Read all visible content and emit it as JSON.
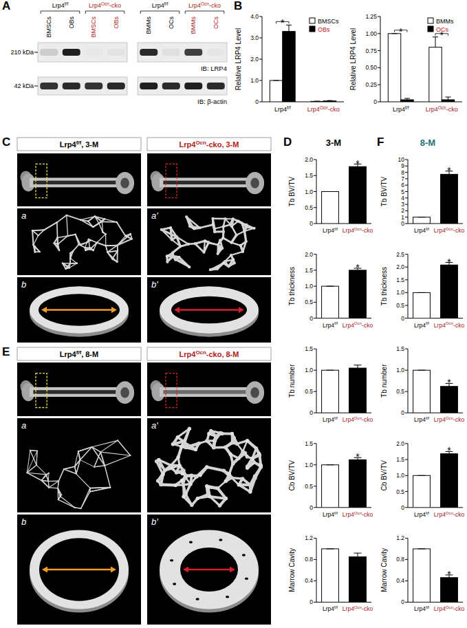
{
  "panels": {
    "A": {
      "label": "A",
      "groups": [
        {
          "name": "Lrp4f/f",
          "lanes": [
            "BMSCs",
            "OBs"
          ]
        },
        {
          "name": "Lrp4Ocn-cko",
          "lanes": [
            "BMSCs",
            "OBs"
          ]
        },
        {
          "name": "Lrp4f/f",
          "lanes": [
            "BMMs",
            "OCs"
          ]
        },
        {
          "name": "Lrp4Ocn-cko",
          "lanes": [
            "BMMs",
            "OCs"
          ]
        }
      ],
      "blots": [
        {
          "size": "210 kDa",
          "antibody": "IB: LRP4",
          "intensity": [
            0.15,
            0.95,
            0.02,
            0.04,
            0.9,
            0.06,
            0.8,
            0.03
          ]
        },
        {
          "size": "42 kDa",
          "antibody": "IB: β-actin",
          "intensity": [
            0.85,
            0.9,
            0.85,
            0.9,
            0.95,
            0.9,
            0.95,
            0.9
          ]
        }
      ]
    },
    "B": {
      "label": "B"
    },
    "C": {
      "label": "C",
      "headers": [
        "Lrp4f/f, 3-M",
        "Lrp4Ocn-cko, 3-M"
      ],
      "sub_labels": [
        [
          "a",
          "a′"
        ],
        [
          "b",
          "b′"
        ]
      ]
    },
    "D": {
      "label": "D",
      "title": "3-M"
    },
    "E": {
      "label": "E",
      "headers": [
        "Lrp4f/f, 8-M",
        "Lrp4Ocn-cko, 8-M"
      ],
      "sub_labels": [
        [
          "a",
          "a′"
        ],
        [
          "b",
          "b′"
        ]
      ]
    },
    "F": {
      "label": "F",
      "title": "8-M"
    }
  },
  "chart_data": [
    {
      "type": "bar",
      "ylabel": "Relative LRP4 Level",
      "categories": [
        "Lrp4f/f",
        "Lrp4Ocn-cko"
      ],
      "series": [
        {
          "name": "BMSCs",
          "color": "#ffffff",
          "values": [
            1,
            0.02
          ],
          "errors": [
            0,
            0.01
          ]
        },
        {
          "name": "OBs",
          "color": "#000000",
          "values": [
            3.3,
            0.04
          ],
          "errors": [
            0.3,
            0.02
          ]
        }
      ],
      "ylim": [
        0,
        4
      ],
      "yticks": [
        0,
        {
          "value": 1,
          "label": "1.0"
        },
        {
          "value": 2,
          "label": "2.0"
        },
        {
          "value": 3,
          "label": "3.0"
        },
        {
          "value": 4,
          "label": "4.0"
        }
      ],
      "legend": "top-right",
      "grid": false,
      "annotations": [
        {
          "text": "*",
          "index": 0
        }
      ]
    },
    {
      "type": "bar",
      "ylabel": "Relative LRP4 Level",
      "categories": [
        "Lrp4f/f",
        "Lrp4Ocn-cko"
      ],
      "series": [
        {
          "name": "BMMs",
          "color": "#ffffff",
          "values": [
            1,
            0.8
          ],
          "errors": [
            0,
            0.15
          ]
        },
        {
          "name": "OCs",
          "color": "#000000",
          "values": [
            0.03,
            0.03
          ],
          "errors": [
            0.02,
            0.04
          ]
        }
      ],
      "ylim": [
        0,
        1.25
      ],
      "yticks": [
        0,
        0.25,
        {
          "value": 0.5,
          "label": "0.50"
        },
        0.75,
        {
          "value": 1,
          "label": "1.00"
        },
        1.25
      ],
      "legend": "top-right",
      "grid": false,
      "annotations": [
        {
          "text": "*",
          "index": 0
        },
        {
          "text": "*",
          "index": 1
        }
      ]
    },
    {
      "type": "bar",
      "ylabel": "Tb BV/TV",
      "categories": [
        "Lrp4f/f",
        "Lrp4Ocn-cko"
      ],
      "values": [
        1,
        1.78
      ],
      "errors": [
        0,
        0.08
      ],
      "colors": [
        "#ffffff",
        "#000000"
      ],
      "ylim": [
        0,
        2
      ],
      "yticks": [
        0,
        0.5,
        {
          "value": 1,
          "label": "1.0"
        },
        1.5,
        {
          "value": 2,
          "label": "2.0"
        }
      ],
      "grid": false,
      "annotations": [
        {
          "text": "*",
          "index": 1
        }
      ]
    },
    {
      "type": "bar",
      "ylabel": "Tb thickness",
      "categories": [
        "Lrp4f/f",
        "Lrp4Ocn-cko"
      ],
      "values": [
        1,
        1.5
      ],
      "errors": [
        0,
        0.06
      ],
      "colors": [
        "#ffffff",
        "#000000"
      ],
      "ylim": [
        0,
        2
      ],
      "yticks": [
        0,
        0.5,
        {
          "value": 1,
          "label": "1.0"
        },
        1.5,
        {
          "value": 2,
          "label": "2.0"
        }
      ],
      "grid": false,
      "annotations": [
        {
          "text": "*",
          "index": 1
        }
      ]
    },
    {
      "type": "bar",
      "ylabel": "Tb number",
      "categories": [
        "Lrp4f/f",
        "Lrp4Ocn-cko"
      ],
      "values": [
        1,
        1.05
      ],
      "errors": [
        0,
        0.07
      ],
      "colors": [
        "#ffffff",
        "#000000"
      ],
      "ylim": [
        0,
        1.5
      ],
      "yticks": [
        0,
        0.5,
        {
          "value": 1,
          "label": "1.0"
        },
        1.5
      ],
      "grid": false,
      "annotations": []
    },
    {
      "type": "bar",
      "ylabel": "Cb BV/TV",
      "categories": [
        "Lrp4f/f",
        "Lrp4Ocn-cko"
      ],
      "values": [
        1,
        1.12
      ],
      "errors": [
        0,
        0.05
      ],
      "colors": [
        "#ffffff",
        "#000000"
      ],
      "ylim": [
        0,
        1.5
      ],
      "yticks": [
        0,
        0.5,
        {
          "value": 1,
          "label": "1.0"
        },
        1.5
      ],
      "grid": false,
      "annotations": [
        {
          "text": "*",
          "index": 1
        }
      ]
    },
    {
      "type": "bar",
      "ylabel": "Marrow Cavity",
      "categories": [
        "Lrp4f/f",
        "Lrp4Ocn-cko"
      ],
      "values": [
        1,
        0.85
      ],
      "errors": [
        0,
        0.07
      ],
      "colors": [
        "#ffffff",
        "#000000"
      ],
      "ylim": [
        0,
        1.2
      ],
      "yticks": [
        0,
        0.4,
        0.8,
        1.2
      ],
      "grid": false,
      "annotations": []
    },
    {
      "type": "bar",
      "ylabel": "Tb BV/TV",
      "categories": [
        "Lrp4f/f",
        "Lrp4Ocn-cko"
      ],
      "values": [
        1,
        7.7
      ],
      "errors": [
        0,
        0.5
      ],
      "colors": [
        "#ffffff",
        "#000000"
      ],
      "ylim": [
        0,
        10
      ],
      "yticks": [
        0,
        1,
        2,
        3,
        4,
        5,
        6,
        7,
        8,
        9,
        10
      ],
      "grid": false,
      "annotations": [
        {
          "text": "*",
          "index": 1
        }
      ]
    },
    {
      "type": "bar",
      "ylabel": "Tb thickness",
      "categories": [
        "Lrp4f/f",
        "Lrp4Ocn-cko"
      ],
      "values": [
        1,
        2.08
      ],
      "errors": [
        0,
        0.1
      ],
      "colors": [
        "#ffffff",
        "#000000"
      ],
      "ylim": [
        0,
        2.5
      ],
      "yticks": [
        0,
        0.5,
        {
          "value": 1,
          "label": "1.0"
        },
        1.5,
        {
          "value": 2,
          "label": "2.0"
        },
        2.5
      ],
      "grid": false,
      "annotations": [
        {
          "text": "*",
          "index": 1
        }
      ]
    },
    {
      "type": "bar",
      "ylabel": "Tb number",
      "categories": [
        "Lrp4f/f",
        "Lrp4Ocn-cko"
      ],
      "values": [
        1,
        0.62
      ],
      "errors": [
        0,
        0.07
      ],
      "colors": [
        "#ffffff",
        "#000000"
      ],
      "ylim": [
        0,
        1.5
      ],
      "yticks": [
        0,
        0.5,
        {
          "value": 1,
          "label": "1.0"
        },
        1.5
      ],
      "grid": false,
      "annotations": [
        {
          "text": "*",
          "index": 1
        }
      ]
    },
    {
      "type": "bar",
      "ylabel": "Cb BV/TV",
      "categories": [
        "Lrp4f/f",
        "Lrp4Ocn-cko"
      ],
      "values": [
        1,
        1.68
      ],
      "errors": [
        0,
        0.07
      ],
      "colors": [
        "#ffffff",
        "#000000"
      ],
      "ylim": [
        0,
        2
      ],
      "yticks": [
        0,
        0.5,
        {
          "value": 1,
          "label": "1.0"
        },
        1.5,
        {
          "value": 2,
          "label": "2.0"
        }
      ],
      "grid": false,
      "annotations": [
        {
          "text": "*",
          "index": 1
        }
      ]
    },
    {
      "type": "bar",
      "ylabel": "Marrow Cavity",
      "categories": [
        "Lrp4f/f",
        "Lrp4Ocn-cko"
      ],
      "values": [
        1,
        0.46
      ],
      "errors": [
        0,
        0.05
      ],
      "colors": [
        "#ffffff",
        "#000000"
      ],
      "ylim": [
        0,
        1.2
      ],
      "yticks": [
        0,
        0.4,
        0.8,
        1.2
      ],
      "grid": false,
      "annotations": [
        {
          "text": "*",
          "index": 1
        }
      ]
    }
  ]
}
